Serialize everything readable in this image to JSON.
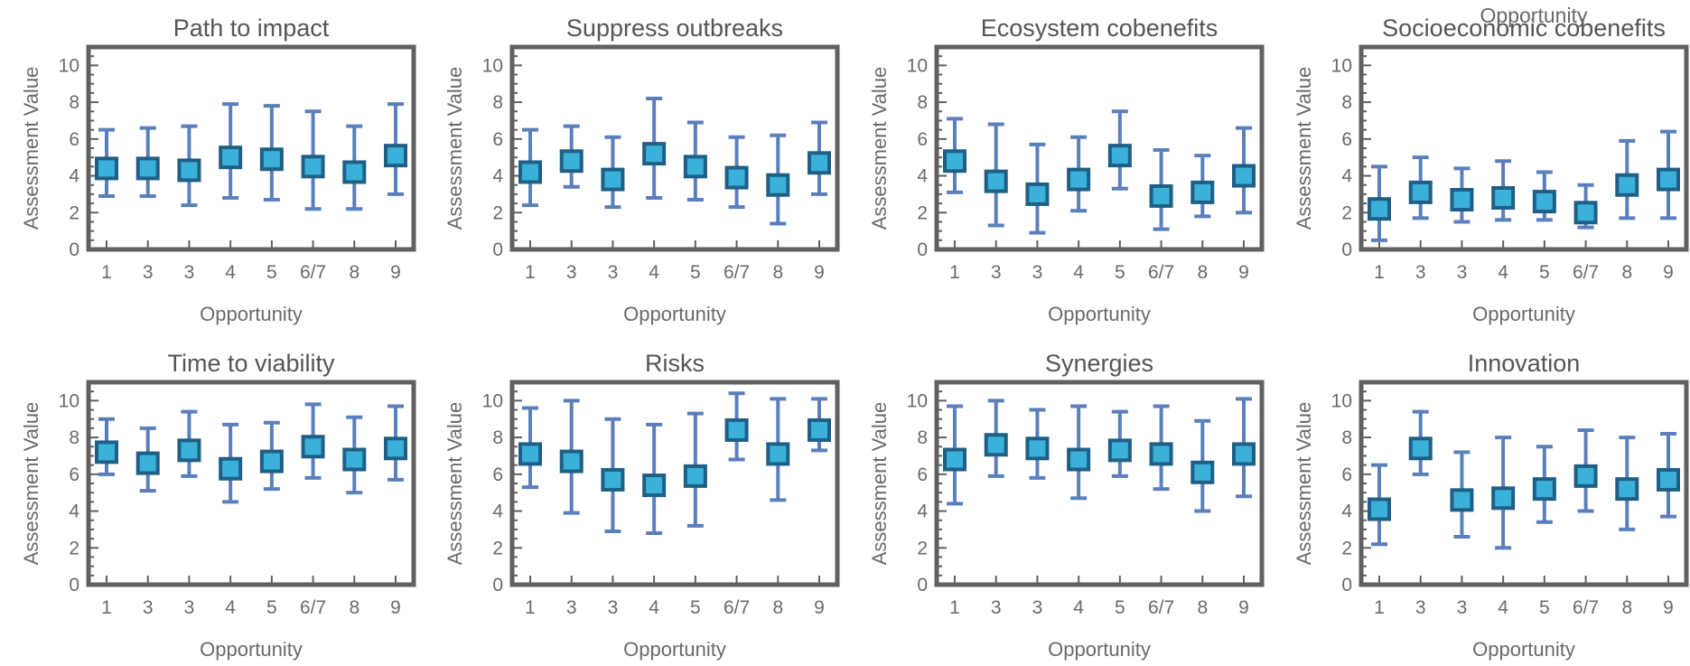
{
  "stray_label": "Opportunity",
  "chart_data": [
    {
      "type": "scatter",
      "title": "Path to impact",
      "xlabel": "Opportunity",
      "ylabel": "Assessment Value",
      "ylim": [
        0,
        11
      ],
      "yticks": [
        0,
        2,
        4,
        6,
        8,
        10
      ],
      "categories": [
        "1",
        "3",
        "3",
        "4",
        "5",
        "6/7",
        "8",
        "9"
      ],
      "values": [
        4.4,
        4.4,
        4.3,
        5.0,
        4.9,
        4.5,
        4.2,
        5.1
      ],
      "err_low": [
        2.9,
        2.9,
        2.4,
        2.8,
        2.7,
        2.2,
        2.2,
        3.0
      ],
      "err_high": [
        6.5,
        6.6,
        6.7,
        7.9,
        7.8,
        7.5,
        6.7,
        7.9
      ]
    },
    {
      "type": "scatter",
      "title": "Suppress outbreaks",
      "xlabel": "Opportunity",
      "ylabel": "Assessment Value",
      "ylim": [
        0,
        11
      ],
      "yticks": [
        0,
        2,
        4,
        6,
        8,
        10
      ],
      "categories": [
        "1",
        "3",
        "3",
        "4",
        "5",
        "6/7",
        "8",
        "9"
      ],
      "values": [
        4.2,
        4.8,
        3.8,
        5.2,
        4.5,
        3.9,
        3.5,
        4.7
      ],
      "err_low": [
        2.4,
        3.4,
        2.3,
        2.8,
        2.7,
        2.3,
        1.4,
        3.0
      ],
      "err_high": [
        6.5,
        6.7,
        6.1,
        8.2,
        6.9,
        6.1,
        6.2,
        6.9
      ]
    },
    {
      "type": "scatter",
      "title": "Ecosystem cobenefits",
      "xlabel": "Opportunity",
      "ylabel": "Assessment Value",
      "ylim": [
        0,
        11
      ],
      "yticks": [
        0,
        2,
        4,
        6,
        8,
        10
      ],
      "categories": [
        "1",
        "3",
        "3",
        "4",
        "5",
        "6/7",
        "8",
        "9"
      ],
      "values": [
        4.8,
        3.7,
        3.0,
        3.8,
        5.1,
        2.9,
        3.1,
        4.0
      ],
      "err_low": [
        3.1,
        1.3,
        0.9,
        2.1,
        3.3,
        1.1,
        1.8,
        2.0
      ],
      "err_high": [
        7.1,
        6.8,
        5.7,
        6.1,
        7.5,
        5.4,
        5.1,
        6.6
      ]
    },
    {
      "type": "scatter",
      "title": "Socioeconomic cobenefits",
      "xlabel": "Opportunity",
      "ylabel": "Assessment Value",
      "ylim": [
        0,
        11
      ],
      "yticks": [
        0,
        2,
        4,
        6,
        8,
        10
      ],
      "categories": [
        "1",
        "3",
        "3",
        "4",
        "5",
        "6/7",
        "8",
        "9"
      ],
      "values": [
        2.2,
        3.1,
        2.7,
        2.8,
        2.6,
        2.0,
        3.5,
        3.8
      ],
      "err_low": [
        0.5,
        1.7,
        1.5,
        1.6,
        1.6,
        1.2,
        1.7,
        1.7
      ],
      "err_high": [
        4.5,
        5.0,
        4.4,
        4.8,
        4.2,
        3.5,
        5.9,
        6.4
      ]
    },
    {
      "type": "scatter",
      "title": "Time to viability",
      "xlabel": "Opportunity",
      "ylabel": "Assessment Value",
      "ylim": [
        0,
        11
      ],
      "yticks": [
        0,
        2,
        4,
        6,
        8,
        10
      ],
      "categories": [
        "1",
        "3",
        "3",
        "4",
        "5",
        "6/7",
        "8",
        "9"
      ],
      "values": [
        7.2,
        6.6,
        7.3,
        6.3,
        6.7,
        7.5,
        6.8,
        7.4
      ],
      "err_low": [
        6.0,
        5.1,
        5.9,
        4.5,
        5.2,
        5.8,
        5.0,
        5.7
      ],
      "err_high": [
        9.0,
        8.5,
        9.4,
        8.7,
        8.8,
        9.8,
        9.1,
        9.7
      ]
    },
    {
      "type": "scatter",
      "title": "Risks",
      "xlabel": "Opportunity",
      "ylabel": "Assessment Value",
      "ylim": [
        0,
        11
      ],
      "yticks": [
        0,
        2,
        4,
        6,
        8,
        10
      ],
      "categories": [
        "1",
        "3",
        "3",
        "4",
        "5",
        "6/7",
        "8",
        "9"
      ],
      "values": [
        7.1,
        6.7,
        5.7,
        5.4,
        5.9,
        8.4,
        7.1,
        8.4
      ],
      "err_low": [
        5.3,
        3.9,
        2.9,
        2.8,
        3.2,
        6.8,
        4.6,
        7.3
      ],
      "err_high": [
        9.6,
        10.0,
        9.0,
        8.7,
        9.3,
        10.4,
        10.1,
        10.1
      ]
    },
    {
      "type": "scatter",
      "title": "Synergies",
      "xlabel": "Opportunity",
      "ylabel": "Assessment Value",
      "ylim": [
        0,
        11
      ],
      "yticks": [
        0,
        2,
        4,
        6,
        8,
        10
      ],
      "categories": [
        "1",
        "3",
        "3",
        "4",
        "5",
        "6/7",
        "8",
        "9"
      ],
      "values": [
        6.8,
        7.6,
        7.4,
        6.8,
        7.3,
        7.1,
        6.1,
        7.1
      ],
      "err_low": [
        4.4,
        5.9,
        5.8,
        4.7,
        5.9,
        5.2,
        4.0,
        4.8
      ],
      "err_high": [
        9.7,
        10.0,
        9.5,
        9.7,
        9.4,
        9.7,
        8.9,
        10.1
      ]
    },
    {
      "type": "scatter",
      "title": "Innovation",
      "xlabel": "Opportunity",
      "ylabel": "Assessment Value",
      "ylim": [
        0,
        11
      ],
      "yticks": [
        0,
        2,
        4,
        6,
        8,
        10
      ],
      "categories": [
        "1",
        "3",
        "3",
        "4",
        "5",
        "6/7",
        "8",
        "9"
      ],
      "values": [
        4.1,
        7.4,
        4.6,
        4.7,
        5.2,
        5.9,
        5.2,
        5.7
      ],
      "err_low": [
        2.2,
        6.0,
        2.6,
        2.0,
        3.4,
        4.0,
        3.0,
        3.7
      ],
      "err_high": [
        6.5,
        9.4,
        7.2,
        8.0,
        7.5,
        8.4,
        8.0,
        8.2
      ]
    }
  ]
}
